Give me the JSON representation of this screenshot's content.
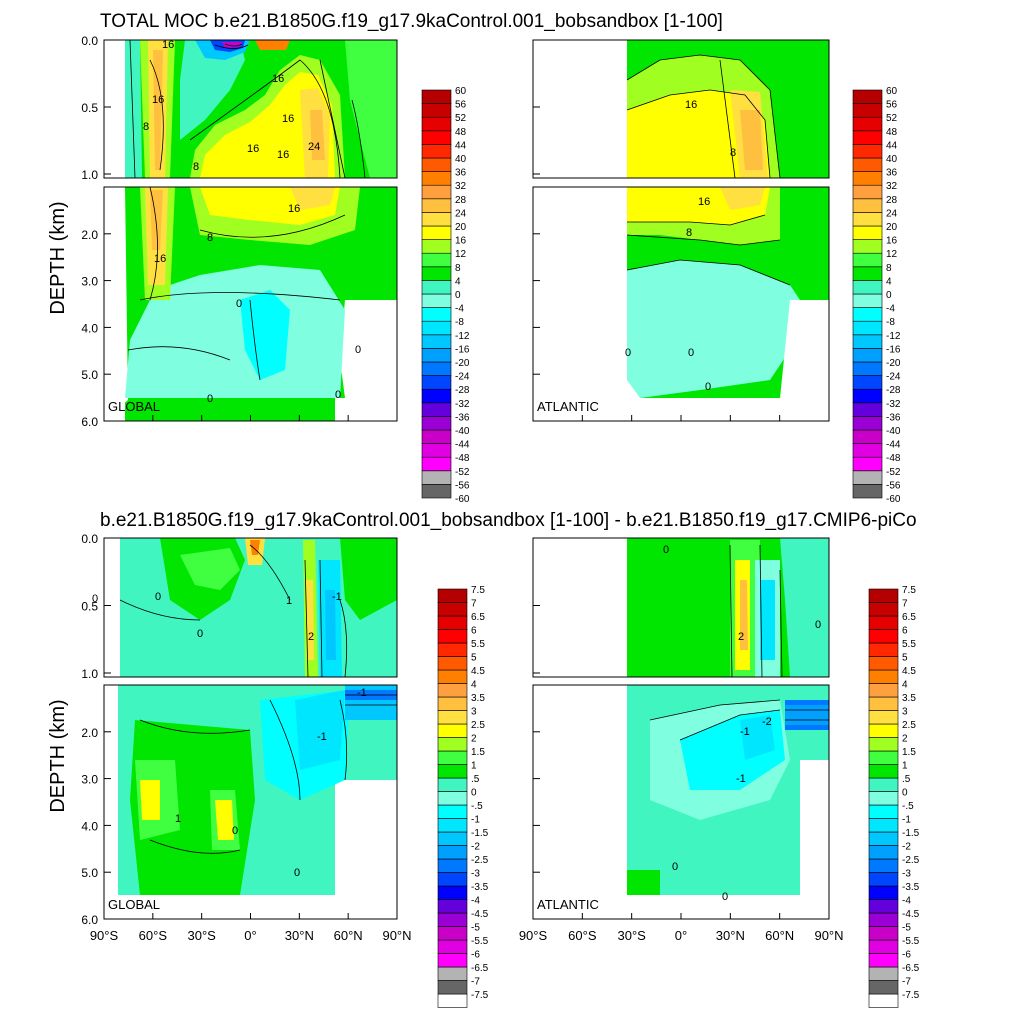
{
  "colors": {
    "moc_levels": [
      "#666666",
      "#b3b3b3",
      "#ff00ff",
      "#e100e1",
      "#c800c8",
      "#9a00d6",
      "#6400dc",
      "#0000ff",
      "#0046ff",
      "#0078ff",
      "#00a0ff",
      "#00c8ff",
      "#00e6ff",
      "#00ffff",
      "#7fffe0",
      "#40f5c0",
      "#00e600",
      "#40ff40",
      "#a0ff20",
      "#ffff00",
      "#ffe040",
      "#ffc040",
      "#ffa040",
      "#ff8000",
      "#ff5a00",
      "#ff2800",
      "#ff0000",
      "#e60000",
      "#c80000",
      "#b40000"
    ],
    "diff_levels": [
      "#ffffff",
      "#666666",
      "#b3b3b3",
      "#ff00ff",
      "#e100e1",
      "#c800c8",
      "#9a00d6",
      "#6400dc",
      "#0000ff",
      "#0046ff",
      "#0078ff",
      "#00a0ff",
      "#00c8ff",
      "#00e6ff",
      "#00ffff",
      "#7fffe0",
      "#40f5c0",
      "#00e600",
      "#40ff40",
      "#a0ff20",
      "#ffff00",
      "#ffe040",
      "#ffc040",
      "#ffa040",
      "#ff8000",
      "#ff5a00",
      "#ff2800",
      "#ff0000",
      "#e60000",
      "#c80000",
      "#b40000"
    ]
  },
  "chart_data": [
    {
      "type": "heatmap",
      "title": "TOTAL MOC b.e21.B1850G.f19_g17.9kaControl.001_bobsandbox [1-100]",
      "ylabel": "DEPTH (km)",
      "ylim": [
        6.0,
        0.0
      ],
      "y_ticks": [
        "0.0",
        "0.5",
        "1.0",
        "2.0",
        "3.0",
        "4.0",
        "5.0",
        "6.0"
      ],
      "x_ticks": [],
      "panels": [
        {
          "name": "GLOBAL",
          "xlim": [
            -90,
            90
          ],
          "contour_labels": [
            "16",
            "16",
            "8",
            "16",
            "8",
            "16",
            "16",
            "16",
            "24",
            "16",
            "16",
            "8",
            "0",
            "0",
            "0",
            "0"
          ]
        },
        {
          "name": "ATLANTIC",
          "xlim": [
            -90,
            90
          ],
          "contour_labels": [
            "16",
            "8",
            "16",
            "8",
            "0",
            "0",
            "0"
          ]
        }
      ],
      "colorbar_labels": [
        "60",
        "56",
        "52",
        "48",
        "44",
        "40",
        "36",
        "32",
        "28",
        "24",
        "20",
        "16",
        "12",
        "8",
        "4",
        "0",
        "-4",
        "-8",
        "-12",
        "-16",
        "-20",
        "-24",
        "-28",
        "-32",
        "-36",
        "-40",
        "-44",
        "-48",
        "-52",
        "-56",
        "-60"
      ]
    },
    {
      "type": "heatmap",
      "title": "b.e21.B1850G.f19_g17.9kaControl.001_bobsandbox [1-100] - b.e21.B1850.f19_g17.CMIP6-piCo",
      "ylabel": "DEPTH (km)",
      "ylim": [
        6.0,
        0.0
      ],
      "y_ticks": [
        "0.0",
        "0.5",
        "1.0",
        "2.0",
        "3.0",
        "4.0",
        "5.0",
        "6.0"
      ],
      "x_ticks": [
        "90°S",
        "60°S",
        "30°S",
        "0°",
        "30°N",
        "60°N",
        "90°N"
      ],
      "panels": [
        {
          "name": "GLOBAL",
          "xlim": [
            -90,
            90
          ],
          "contour_labels": [
            "0",
            "0",
            "0",
            "1",
            "2",
            "-1",
            "-1",
            "0",
            "1",
            "-1",
            "0"
          ]
        },
        {
          "name": "ATLANTIC",
          "xlim": [
            -90,
            90
          ],
          "contour_labels": [
            "2",
            "-1",
            "-2",
            "-1",
            "0",
            "0",
            "0",
            "0"
          ]
        }
      ],
      "colorbar_labels": [
        "7.5",
        "7",
        "6.5",
        "6",
        "5.5",
        "5",
        "4.5",
        "4",
        "3.5",
        "3",
        "2.5",
        "2",
        "1.5",
        "1",
        ".5",
        "0",
        "-.5",
        "-1",
        "-1.5",
        "-2",
        "-2.5",
        "-3",
        "-3.5",
        "-4",
        "-4.5",
        "-5",
        "-5.5",
        "-6",
        "-6.5",
        "-7",
        "-7.5"
      ]
    }
  ]
}
